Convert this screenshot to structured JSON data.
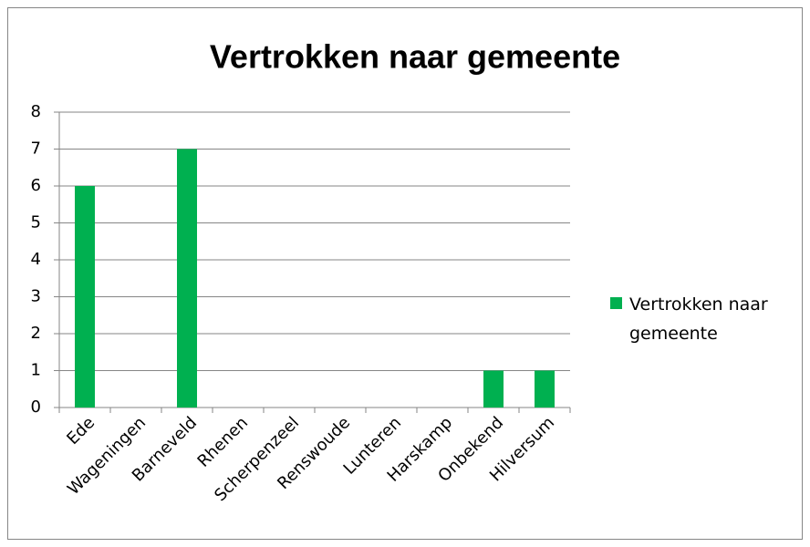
{
  "chart_data": {
    "type": "bar",
    "title": "Vertrokken naar gemeente",
    "categories": [
      "Ede",
      "Wageningen",
      "Barneveld",
      "Rhenen",
      "Scherpenzeel",
      "Renswoude",
      "Lunteren",
      "Harskamp",
      "Onbekend",
      "Hilversum"
    ],
    "series": [
      {
        "name": "Vertrokken naar gemeente",
        "color": "#00b050",
        "values": [
          6,
          0,
          7,
          0,
          0,
          0,
          0,
          0,
          1,
          1
        ]
      }
    ],
    "ylim": [
      0,
      8
    ],
    "yticks": [
      0,
      1,
      2,
      3,
      4,
      5,
      6,
      7,
      8
    ],
    "grid": true,
    "legend": "right"
  }
}
